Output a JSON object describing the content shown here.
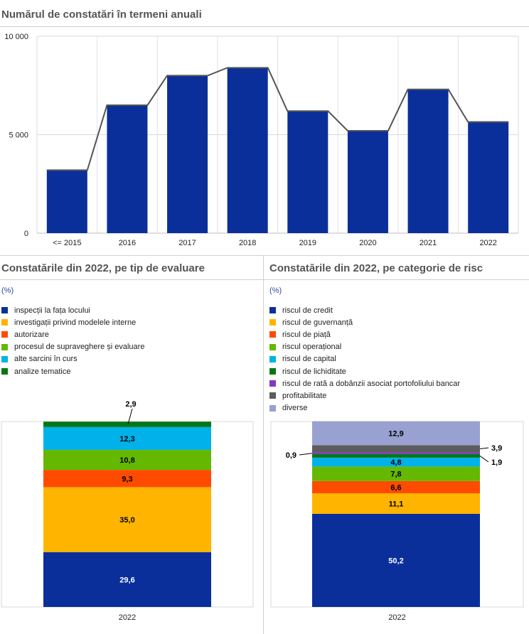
{
  "chart_data": [
    {
      "type": "bar",
      "title": "Numărul de constatări în termeni anuali",
      "categories": [
        "<= 2015",
        "2016",
        "2017",
        "2018",
        "2019",
        "2020",
        "2021",
        "2022"
      ],
      "values": [
        3200,
        6500,
        8000,
        8400,
        6200,
        5200,
        7300,
        5650
      ],
      "y_ticks": [
        "0",
        "5 000",
        "10 000"
      ],
      "y_tick_values": [
        0,
        5000,
        10000
      ],
      "ylim": [
        0,
        10000
      ],
      "bar_color": "#0a2f9a",
      "line_color": "#555555",
      "grid": true
    },
    {
      "type": "bar",
      "stacked": true,
      "title": "Constatările din 2022, pe tip de evaluare",
      "unit": "(%)",
      "categories": [
        "2022"
      ],
      "ylim": [
        0,
        100
      ],
      "series": [
        {
          "name": "inspecții la fața locului",
          "value": 29.6,
          "label": "29,6",
          "color": "#0a2f9a"
        },
        {
          "name": "investigații privind modelele interne",
          "value": 35.0,
          "label": "35,0",
          "color": "#ffb400"
        },
        {
          "name": "autorizare",
          "value": 9.3,
          "label": "9,3",
          "color": "#ff4b00"
        },
        {
          "name": "procesul de supraveghere și evaluare",
          "value": 10.8,
          "label": "10,8",
          "color": "#65b800"
        },
        {
          "name": "alte sarcini în curs",
          "value": 12.3,
          "label": "12,3",
          "color": "#00b1ea"
        },
        {
          "name": "analize tematice",
          "value": 2.9,
          "label": "2,9",
          "color": "#007816"
        }
      ]
    },
    {
      "type": "bar",
      "stacked": true,
      "title": "Constatările din 2022, pe categorie de risc",
      "unit": "(%)",
      "categories": [
        "2022"
      ],
      "ylim": [
        0,
        100
      ],
      "series": [
        {
          "name": "riscul de credit",
          "value": 50.2,
          "label": "50,2",
          "color": "#0a2f9a"
        },
        {
          "name": "riscul de guvernanță",
          "value": 11.1,
          "label": "11,1",
          "color": "#ffb400"
        },
        {
          "name": "riscul de piață",
          "value": 6.6,
          "label": "6,6",
          "color": "#ff4b00"
        },
        {
          "name": "riscul operațional",
          "value": 7.8,
          "label": "7,8",
          "color": "#65b800"
        },
        {
          "name": "riscul de capital",
          "value": 4.8,
          "label": "4,8",
          "color": "#00b1ea"
        },
        {
          "name": "riscul de lichiditate",
          "value": 1.9,
          "label": "1,9",
          "color": "#007816"
        },
        {
          "name": "riscul de rată a dobânzii asociat portofoliului bancar",
          "value": 0.9,
          "label": "0,9",
          "color": "#8139c6"
        },
        {
          "name": "profitabilitate",
          "value": 3.9,
          "label": "3,9",
          "color": "#5c5c5c"
        },
        {
          "name": "diverse",
          "value": 12.9,
          "label": "12,9",
          "color": "#98a1d0"
        }
      ]
    }
  ]
}
